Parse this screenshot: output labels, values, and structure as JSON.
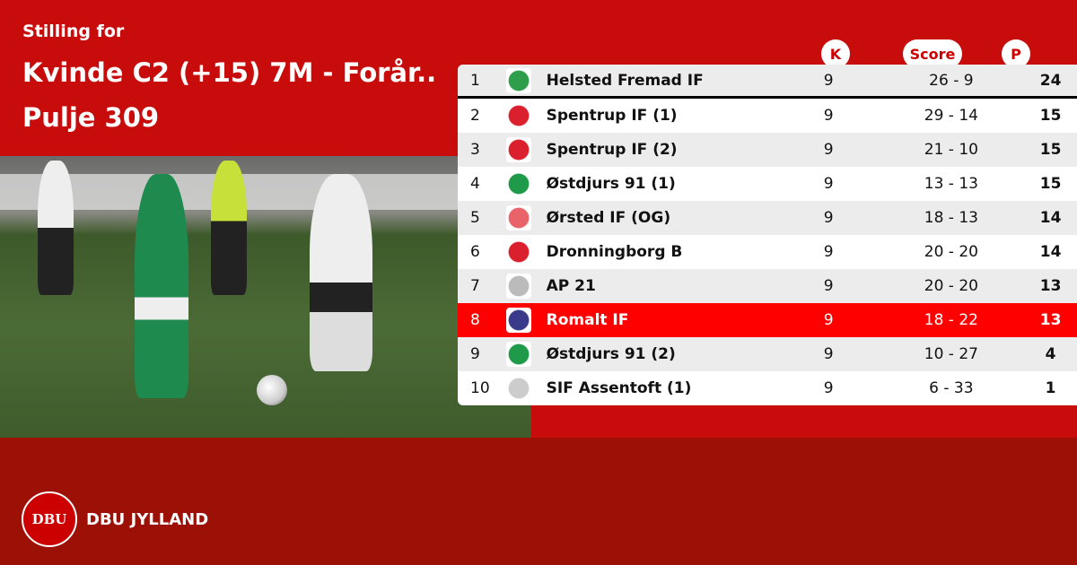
{
  "header": {
    "subtitle": "Stilling for",
    "title": "Kvinde C2 (+15) 7M - Forår.. Pulje 309"
  },
  "columns": {
    "k": "K",
    "score": "Score",
    "p": "P"
  },
  "rows": [
    {
      "pos": "1",
      "team": "Helsted Fremad IF",
      "k": "9",
      "score": "26 - 9",
      "p": "24",
      "logo": "#2e9e4a"
    },
    {
      "pos": "2",
      "team": "Spentrup IF (1)",
      "k": "9",
      "score": "29 - 14",
      "p": "15",
      "logo": "#d9202c"
    },
    {
      "pos": "3",
      "team": "Spentrup IF (2)",
      "k": "9",
      "score": "21 - 10",
      "p": "15",
      "logo": "#d9202c"
    },
    {
      "pos": "4",
      "team": "Østdjurs 91 (1)",
      "k": "9",
      "score": "13 - 13",
      "p": "15",
      "logo": "#1f9a4a"
    },
    {
      "pos": "5",
      "team": "Ørsted IF (OG)",
      "k": "9",
      "score": "18 - 13",
      "p": "14",
      "logo": "#e8646a"
    },
    {
      "pos": "6",
      "team": "Dronningborg B",
      "k": "9",
      "score": "20 - 20",
      "p": "14",
      "logo": "#d9202c"
    },
    {
      "pos": "7",
      "team": "AP 21",
      "k": "9",
      "score": "20 - 20",
      "p": "13",
      "logo": "#bbbbbb"
    },
    {
      "pos": "8",
      "team": "Romalt IF",
      "k": "9",
      "score": "18 - 22",
      "p": "13",
      "logo": "#3a3a8a"
    },
    {
      "pos": "9",
      "team": "Østdjurs 91 (2)",
      "k": "9",
      "score": "10 - 27",
      "p": "4",
      "logo": "#1f9a4a"
    },
    {
      "pos": "10",
      "team": "SIF Assentoft (1)",
      "k": "9",
      "score": "6 - 33",
      "p": "1",
      "logo": "#cccccc"
    }
  ],
  "highlight_row": "8",
  "brand": {
    "name": "DBU JYLLAND",
    "seal": "DBU"
  },
  "colors": {
    "primary": "#c80c0c",
    "footer": "#9c1006",
    "highlight": "#ff0000"
  }
}
